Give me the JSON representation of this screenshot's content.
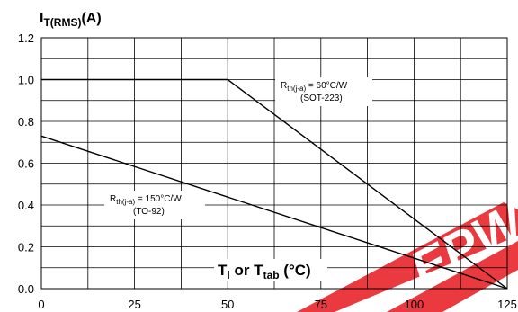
{
  "chart_data": {
    "type": "line",
    "title": "",
    "ylabel": {
      "main": "I",
      "sub": "T(RMS)",
      "suffix": "(A)"
    },
    "xlabel": {
      "part1": "T",
      "sub1": "l",
      "part2": " or T",
      "sub2": "tab",
      "part3": " (°C)"
    },
    "xlim": [
      0,
      125
    ],
    "ylim": [
      0,
      1.2
    ],
    "x_ticks": [
      "0",
      "25",
      "50",
      "75",
      "100",
      "125"
    ],
    "x_tick_values": [
      0,
      25,
      50,
      75,
      100,
      125
    ],
    "y_ticks": [
      "0.0",
      "0.2",
      "0.4",
      "0.6",
      "0.8",
      "1.0",
      "1.2"
    ],
    "y_tick_values": [
      0,
      0.2,
      0.4,
      0.6,
      0.8,
      1.0,
      1.2
    ],
    "grid": true,
    "series": [
      {
        "annotation": {
          "main": "R",
          "sub": "th(j-a)",
          "value": " = 60°C/W",
          "package": "(SOT-223)"
        },
        "x": [
          0,
          50,
          125
        ],
        "y": [
          1.0,
          1.0,
          0
        ]
      },
      {
        "annotation": {
          "main": "R",
          "sub": "th(j-a)",
          "value": " = 150°C/W",
          "package": "(TO-92)"
        },
        "x": [
          0,
          125
        ],
        "y": [
          0.73,
          0
        ]
      }
    ]
  },
  "watermark": {
    "text": "EPW",
    "color": "#e8242a"
  }
}
